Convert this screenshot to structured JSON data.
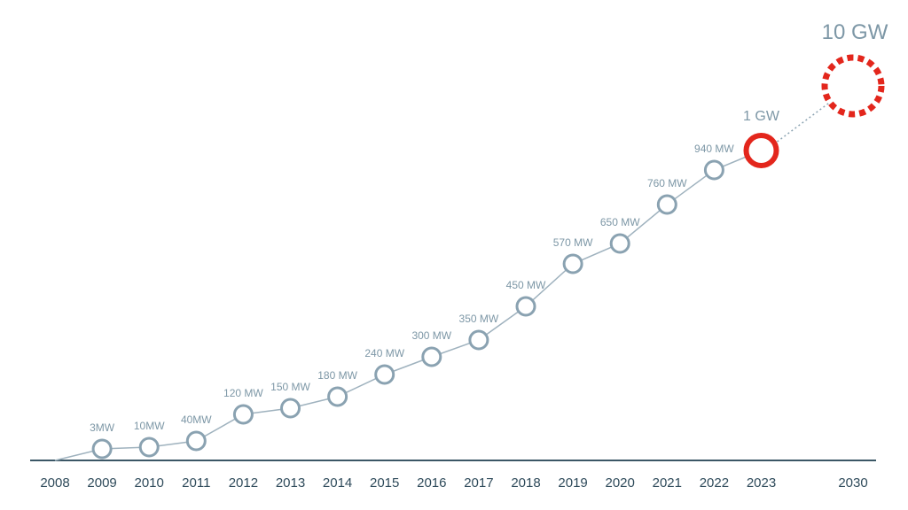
{
  "chart_data": {
    "type": "line",
    "title": "",
    "xlabel": "",
    "ylabel": "",
    "categories": [
      "2008",
      "2009",
      "2010",
      "2011",
      "2012",
      "2013",
      "2014",
      "2015",
      "2016",
      "2017",
      "2018",
      "2019",
      "2020",
      "2021",
      "2022",
      "2023",
      "2030"
    ],
    "x_ticks": [
      "2008",
      "2009",
      "2010",
      "2011",
      "2012",
      "2013",
      "2014",
      "2015",
      "2016",
      "2017",
      "2018",
      "2019",
      "2020",
      "2021",
      "2022",
      "2023",
      "2030"
    ],
    "series": [
      {
        "points": [
          {
            "x": "2008",
            "value": 0,
            "label": ""
          },
          {
            "x": "2009",
            "value": 3,
            "label": "3MW"
          },
          {
            "x": "2010",
            "value": 10,
            "label": "10MW"
          },
          {
            "x": "2011",
            "value": 40,
            "label": "40MW"
          },
          {
            "x": "2012",
            "value": 120,
            "label": "120 MW"
          },
          {
            "x": "2013",
            "value": 150,
            "label": "150 MW"
          },
          {
            "x": "2014",
            "value": 180,
            "label": "180 MW"
          },
          {
            "x": "2015",
            "value": 240,
            "label": "240 MW"
          },
          {
            "x": "2016",
            "value": 300,
            "label": "300 MW"
          },
          {
            "x": "2017",
            "value": 350,
            "label": "350 MW"
          },
          {
            "x": "2018",
            "value": 450,
            "label": "450 MW"
          },
          {
            "x": "2019",
            "value": 570,
            "label": "570 MW"
          },
          {
            "x": "2020",
            "value": 650,
            "label": "650 MW"
          },
          {
            "x": "2021",
            "value": 760,
            "label": "760 MW"
          },
          {
            "x": "2022",
            "value": 940,
            "label": "940 MW"
          },
          {
            "x": "2023",
            "value": 1000,
            "label": "1 GW"
          },
          {
            "x": "2030",
            "value": 10000,
            "label": "10 GW"
          }
        ]
      }
    ],
    "highlight": {
      "x": "2023",
      "label": "1 GW"
    },
    "target": {
      "x": "2030",
      "label": "10 GW",
      "style": "dotted"
    },
    "y_scale": "nonlinear",
    "grid": false,
    "legend": "none"
  },
  "colors": {
    "line": "#9fb2be",
    "marker_stroke": "#8aa2b1",
    "axis": "#3b5766",
    "tick_text": "#2e4a5a",
    "label_text": "#7d97a6",
    "highlight": "#e3261c"
  }
}
